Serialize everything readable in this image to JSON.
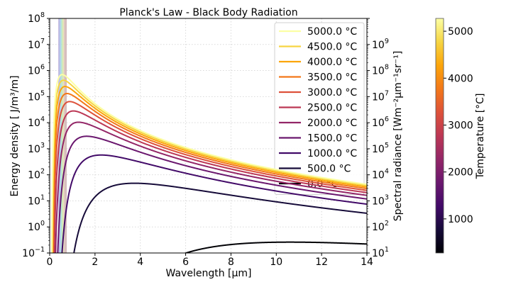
{
  "chart_data": {
    "type": "line",
    "title": "Planck's Law - Black Body Radiation",
    "xlabel": "Wavelength [µm]",
    "ylabel": "Energy density [ J/m³/m]",
    "ylabel_right": "Spectral radiance [Wm⁻²µm⁻¹sr⁻¹]",
    "xlim": [
      0,
      14
    ],
    "ylim": [
      0.1,
      100000000
    ],
    "ylim_right": [
      10,
      10000000000
    ],
    "yscale": "log",
    "grid": true,
    "x_ticks": [
      0,
      2,
      4,
      6,
      8,
      10,
      12,
      14
    ],
    "y_tick_exponents": [
      -1,
      0,
      1,
      2,
      3,
      4,
      5,
      6,
      7,
      8
    ],
    "y_right_tick_exponents": [
      1,
      2,
      3,
      4,
      5,
      6,
      7,
      8,
      9
    ],
    "visible_band_um": [
      0.38,
      0.75
    ],
    "model": "u(lambda,T) = 8*pi*h*c / lambda^5 / (exp(h*c/(lambda*k*T)) - 1), T = t_celsius + 273.15",
    "series": [
      {
        "name": "5000.0 °C",
        "temperature_c": 5000.0,
        "peak_um": 0.55,
        "peak_value": 700000,
        "color": "#fcffa4"
      },
      {
        "name": "4500.0 °C",
        "temperature_c": 4500.0,
        "peak_um": 0.61,
        "peak_value": 420000,
        "color": "#f6d543"
      },
      {
        "name": "4000.0 °C",
        "temperature_c": 4000.0,
        "peak_um": 0.68,
        "peak_value": 240000,
        "color": "#fca50a"
      },
      {
        "name": "3500.0 °C",
        "temperature_c": 3500.0,
        "peak_um": 0.77,
        "peak_value": 125000,
        "color": "#f37819"
      },
      {
        "name": "3000.0 °C",
        "temperature_c": 3000.0,
        "peak_um": 0.89,
        "peak_value": 60000,
        "color": "#dd513a"
      },
      {
        "name": "2500.0 °C",
        "temperature_c": 2500.0,
        "peak_um": 1.04,
        "peak_value": 25000,
        "color": "#bc3754"
      },
      {
        "name": "2000.0 °C",
        "temperature_c": 2000.0,
        "peak_um": 1.27,
        "peak_value": 9400,
        "color": "#932667"
      },
      {
        "name": "1500.0 °C",
        "temperature_c": 1500.0,
        "peak_um": 1.63,
        "peak_value": 2900,
        "color": "#6a176e"
      },
      {
        "name": "1000.0 °C",
        "temperature_c": 1000.0,
        "peak_um": 2.28,
        "peak_value": 550,
        "color": "#420a68"
      },
      {
        "name": "500.0 °C",
        "temperature_c": 500.0,
        "peak_um": 3.75,
        "peak_value": 48,
        "color": "#160b39"
      },
      {
        "name": "0.0 °C",
        "temperature_c": 0.0,
        "peak_um": 10.6,
        "peak_value": 0.26,
        "color": "#000004"
      }
    ],
    "legend": {
      "placement": "top-right",
      "entries": [
        "5000.0 °C",
        "4500.0 °C",
        "4000.0 °C",
        "3500.0 °C",
        "3000.0 °C",
        "2500.0 °C",
        "2000.0 °C",
        "1500.0 °C",
        "1000.0 °C",
        "500.0 °C",
        "0.0 °C"
      ]
    },
    "colorbar": {
      "label": "Temperature [°C]",
      "colormap": "inferno",
      "range": [
        273.15,
        5273.15
      ],
      "ticks": [
        1000,
        2000,
        3000,
        4000,
        5000
      ]
    }
  }
}
